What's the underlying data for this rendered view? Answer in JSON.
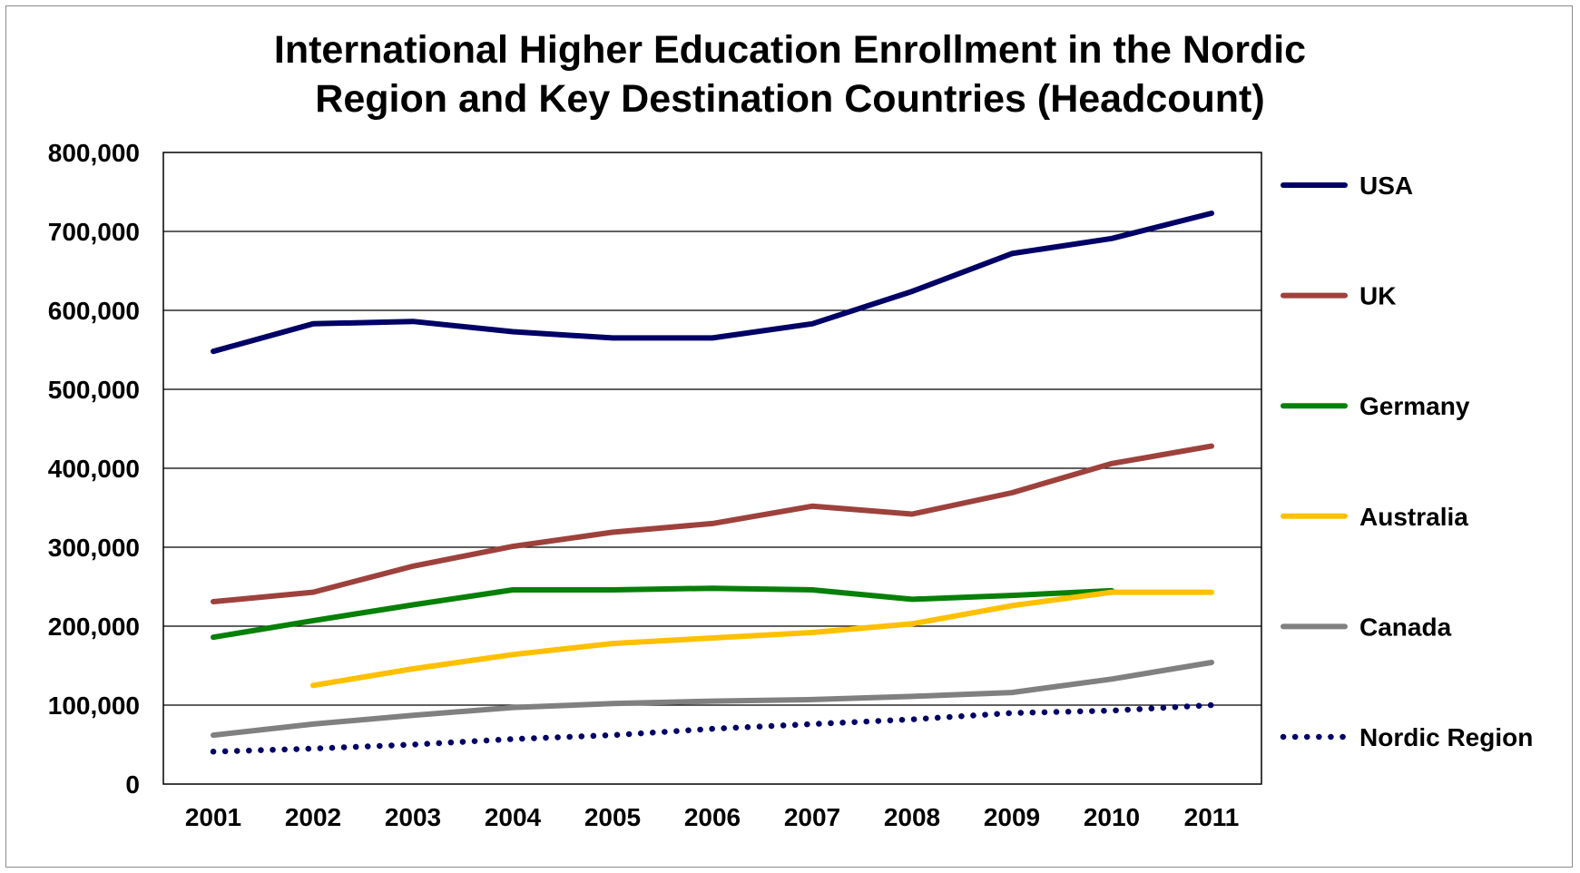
{
  "chart_data": {
    "type": "line",
    "title": [
      "International Higher Education Enrollment in the Nordic",
      "Region and Key Destination Countries (Headcount)"
    ],
    "xlabel": "",
    "ylabel": "",
    "categories": [
      "2001",
      "2002",
      "2003",
      "2004",
      "2005",
      "2006",
      "2007",
      "2008",
      "2009",
      "2010",
      "2011"
    ],
    "ylim": [
      0,
      800000
    ],
    "yticks": [
      0,
      100000,
      200000,
      300000,
      400000,
      500000,
      600000,
      700000,
      800000
    ],
    "ytick_labels": [
      "0",
      "100,000",
      "200,000",
      "300,000",
      "400,000",
      "500,000",
      "600,000",
      "700,000",
      "800,000"
    ],
    "grid": true,
    "legend_position": "right",
    "series": [
      {
        "name": "USA",
        "color": "#000066",
        "dash": "solid",
        "values": [
          548000,
          583000,
          586000,
          573000,
          565000,
          565000,
          583000,
          624000,
          672000,
          691000,
          723000
        ]
      },
      {
        "name": "UK",
        "color": "#9e413c",
        "dash": "solid",
        "values": [
          231000,
          243000,
          276000,
          301000,
          319000,
          330000,
          352000,
          342000,
          369000,
          406000,
          428000
        ]
      },
      {
        "name": "Germany",
        "color": "#068006",
        "dash": "solid",
        "values": [
          186000,
          207000,
          227000,
          246000,
          246000,
          248000,
          246000,
          234000,
          239000,
          245000,
          null
        ]
      },
      {
        "name": "Australia",
        "color": "#ffc000",
        "dash": "solid",
        "values": [
          null,
          125000,
          146000,
          164000,
          178000,
          185000,
          192000,
          203000,
          226000,
          243000,
          243000
        ]
      },
      {
        "name": "Canada",
        "color": "#808080",
        "dash": "solid",
        "values": [
          62000,
          76000,
          87000,
          97000,
          102000,
          105000,
          107000,
          111000,
          116000,
          133000,
          154000
        ]
      },
      {
        "name": "Nordic Region",
        "color": "#000066",
        "dash": "dotted",
        "values": [
          41000,
          45000,
          50000,
          57000,
          62000,
          70000,
          76000,
          82000,
          90000,
          93000,
          100000
        ]
      }
    ]
  }
}
